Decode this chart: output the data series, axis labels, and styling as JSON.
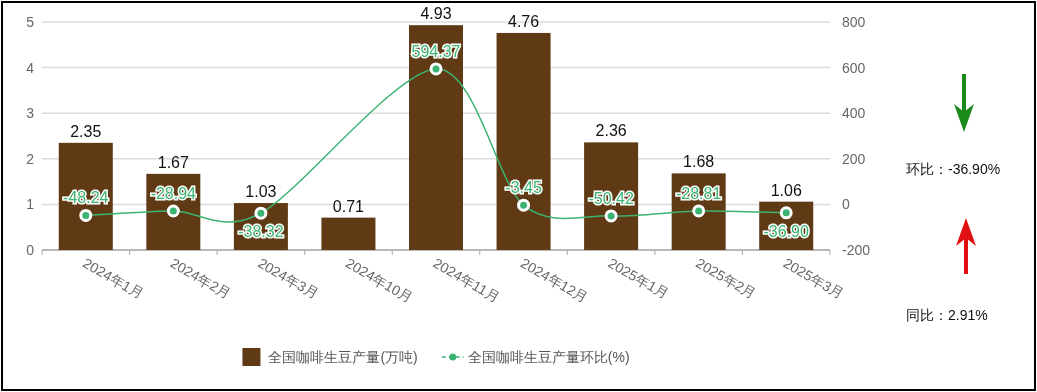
{
  "chart_data": {
    "type": "bar",
    "categories": [
      "2024年1月",
      "2024年2月",
      "2024年3月",
      "2024年10月",
      "2024年11月",
      "2024年12月",
      "2025年1月",
      "2025年2月",
      "2025年3月"
    ],
    "series": [
      {
        "name": "全国咖啡生豆产量(万吨)",
        "color": "#5f3a14",
        "values": [
          2.35,
          1.67,
          1.03,
          0.71,
          4.93,
          4.76,
          2.36,
          1.68,
          1.06
        ]
      },
      {
        "type": "line",
        "name": "全国咖啡生豆产量环比(%)",
        "color": "#3cb371",
        "axis": "y2",
        "marker": "circle",
        "values": [
          -48.24,
          -28.94,
          -38.32,
          null,
          594.37,
          -3.45,
          -50.42,
          -28.81,
          -36.9
        ],
        "value_labels": [
          "-48.24",
          "-28.94",
          "-38.32",
          null,
          "594.37",
          "-3.45",
          "-50.42",
          "-28.81",
          "-36.90"
        ]
      }
    ],
    "ylim": [
      0,
      5
    ],
    "yticks": [
      0,
      1,
      2,
      3,
      4,
      5
    ],
    "y2lim": [
      -200,
      800
    ],
    "y2ticks": [
      -200,
      0,
      200,
      400,
      600,
      800
    ],
    "grid": "y",
    "legend": "bottom",
    "data_labels": true,
    "annotations": [
      "环比：-36.90%",
      "同比：2.91%"
    ]
  }
}
